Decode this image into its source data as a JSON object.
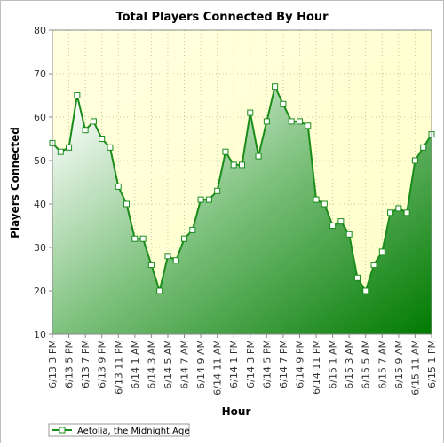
{
  "chart_data": {
    "type": "area",
    "title": "Total Players Connected By Hour",
    "xlabel": "Hour",
    "ylabel": "Players Connected",
    "ylim": [
      10,
      80
    ],
    "yticks": [
      10,
      20,
      30,
      40,
      50,
      60,
      70,
      80
    ],
    "grid": true,
    "legend_position": "bottom-left",
    "x_tick_labels": [
      "6/13 3 PM",
      "6/13 5 PM",
      "6/13 7 PM",
      "6/13 9 PM",
      "6/13 11 PM",
      "6/14 1 AM",
      "6/14 3 AM",
      "6/14 5 AM",
      "6/14 7 AM",
      "6/14 9 AM",
      "6/14 11 AM",
      "6/14 1 PM",
      "6/14 3 PM",
      "6/14 5 PM",
      "6/14 7 PM",
      "6/14 9 PM",
      "6/14 11 PM",
      "6/15 1 AM",
      "6/15 3 AM",
      "6/15 5 AM",
      "6/15 7 AM",
      "6/15 9 AM",
      "6/15 11 AM",
      "6/15 1 PM"
    ],
    "series": [
      {
        "name": "Aetolia, the Midnight Age",
        "color": "#1a8c1a",
        "values": [
          54,
          52,
          53,
          65,
          57,
          59,
          55,
          53,
          44,
          40,
          32,
          32,
          26,
          20,
          28,
          27,
          32,
          34,
          41,
          41,
          43,
          52,
          49,
          49,
          61,
          51,
          59,
          67,
          63,
          59,
          59,
          58,
          41,
          40,
          35,
          36,
          33,
          23,
          20,
          26,
          29,
          38,
          39,
          38,
          50,
          53,
          56
        ]
      }
    ]
  }
}
